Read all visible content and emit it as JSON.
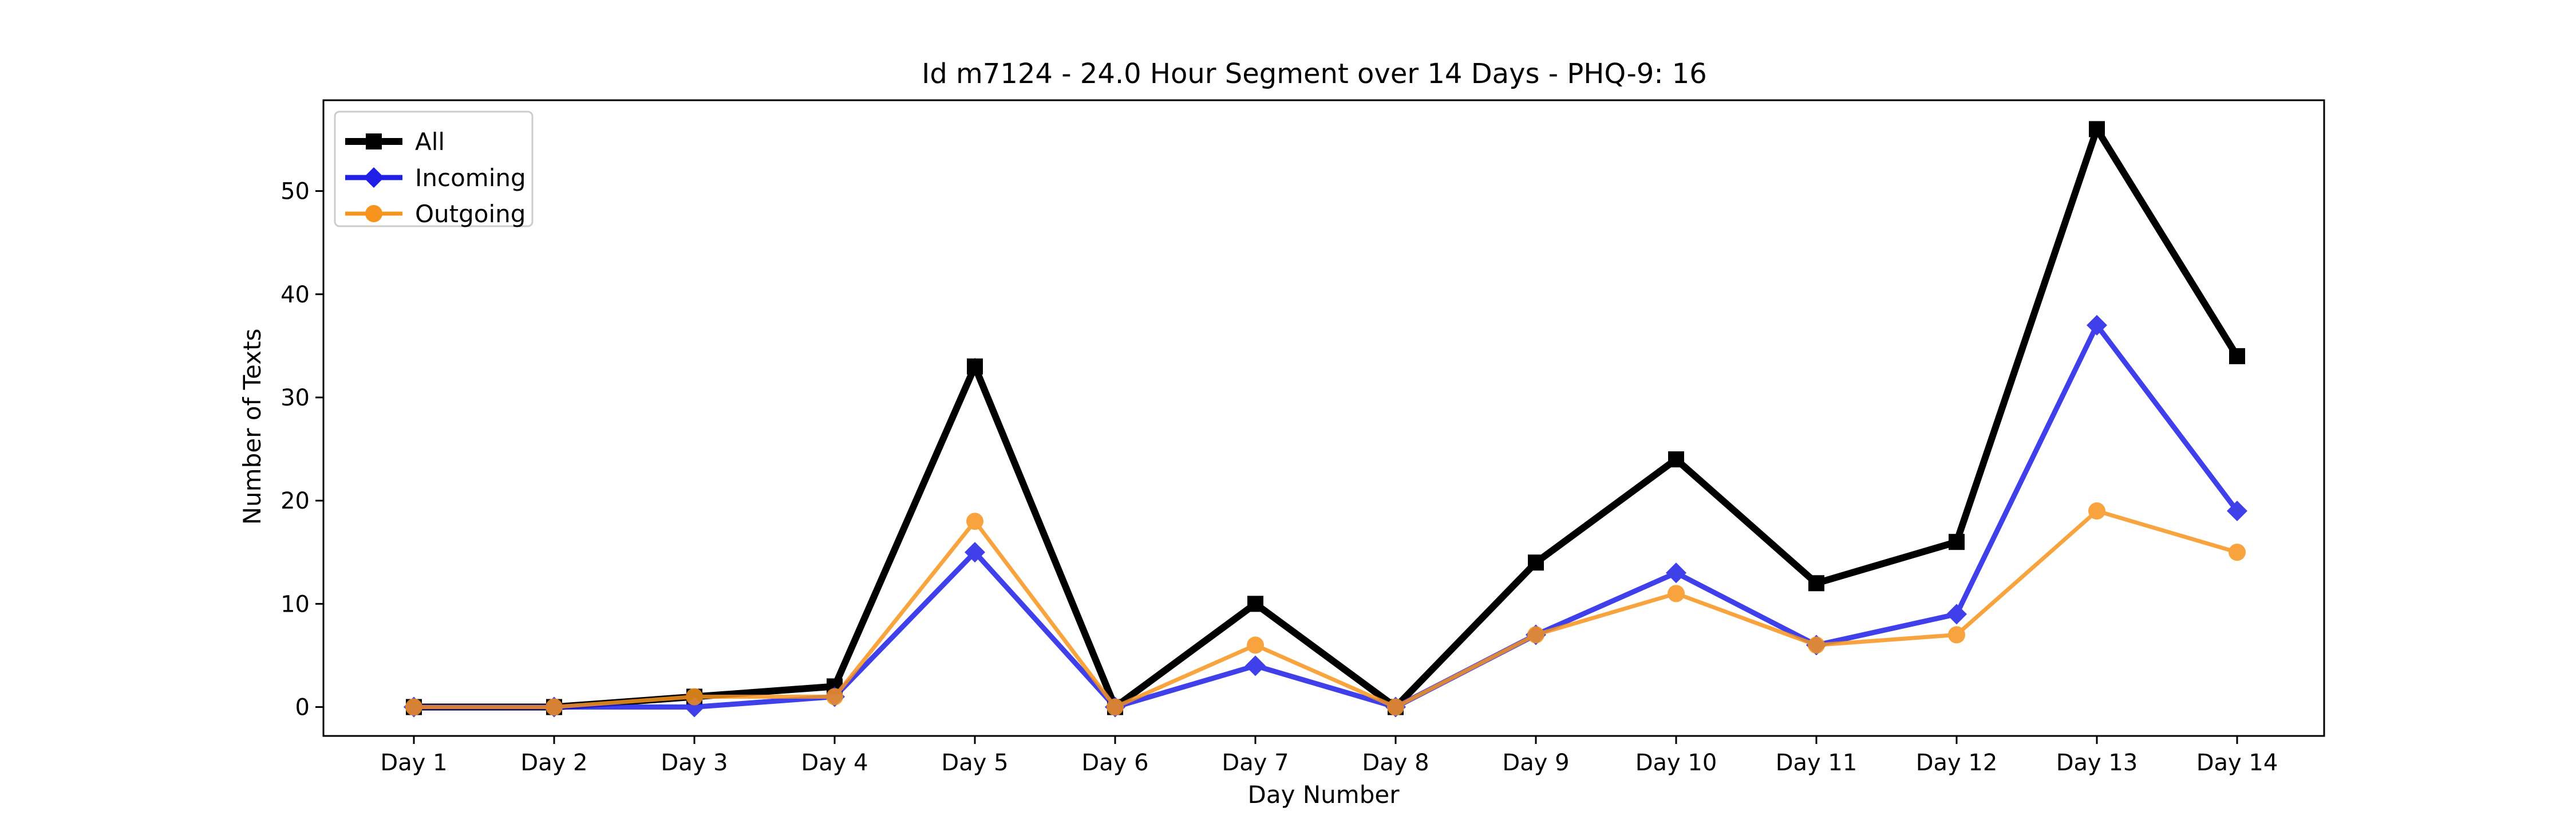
{
  "chart_data": {
    "type": "line",
    "title": "Id m7124 - 24.0 Hour Segment over 14 Days - PHQ-9: 16",
    "xlabel": "Day Number",
    "ylabel": "Number of Texts",
    "categories": [
      "Day 1",
      "Day 2",
      "Day 3",
      "Day 4",
      "Day 5",
      "Day 6",
      "Day 7",
      "Day 8",
      "Day 9",
      "Day 10",
      "Day 11",
      "Day 12",
      "Day 13",
      "Day 14"
    ],
    "ylim": [
      -2.8,
      58.8
    ],
    "yticks": [
      0,
      10,
      20,
      30,
      40,
      50
    ],
    "grid": false,
    "legend_position": "upper-left",
    "series": [
      {
        "name": "All",
        "color": "#000000",
        "marker": "square",
        "values": [
          0,
          0,
          1,
          2,
          33,
          0,
          10,
          0,
          14,
          24,
          12,
          16,
          56,
          34
        ]
      },
      {
        "name": "Incoming",
        "color": "#1f1fe8",
        "marker": "diamond",
        "values": [
          0,
          0,
          0,
          1,
          15,
          0,
          4,
          0,
          7,
          13,
          6,
          9,
          37,
          19
        ]
      },
      {
        "name": "Outgoing",
        "color": "#f7941d",
        "marker": "circle",
        "values": [
          0,
          0,
          1,
          1,
          18,
          0,
          6,
          0,
          7,
          11,
          6,
          7,
          19,
          15
        ]
      }
    ]
  }
}
